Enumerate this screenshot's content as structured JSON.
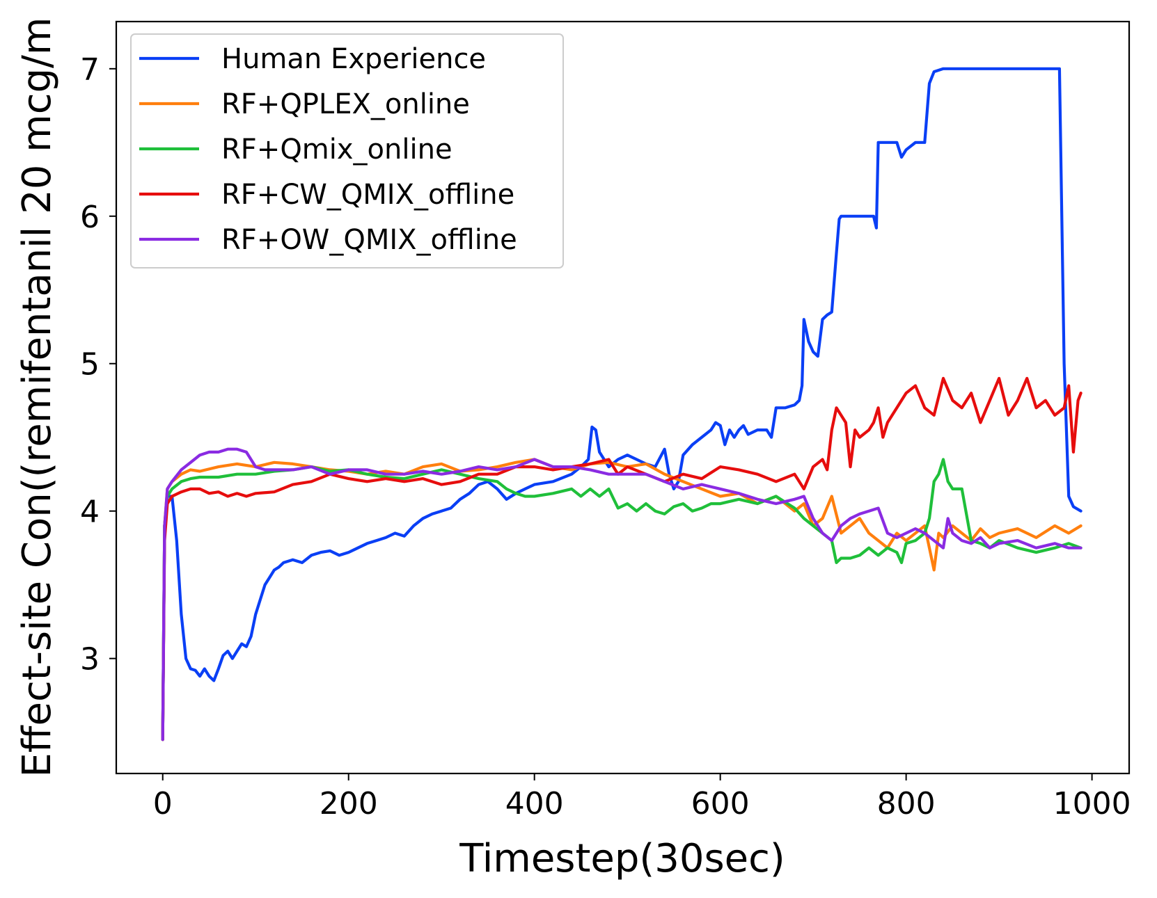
{
  "chart_data": {
    "type": "line",
    "title": "",
    "xlabel": "Timestep(30sec)",
    "ylabel": "Effect-site Con((remifentanil 20 mcg/m",
    "xlim": [
      -50,
      1040
    ],
    "ylim": [
      2.22,
      7.32
    ],
    "xticks": [
      0,
      200,
      400,
      600,
      800,
      1000
    ],
    "xtick_labels": [
      "0",
      "200",
      "400",
      "600",
      "800",
      "1000"
    ],
    "yticks": [
      3,
      4,
      5,
      6,
      7
    ],
    "ytick_labels": [
      "3",
      "4",
      "5",
      "6",
      "7"
    ],
    "grid": false,
    "legend_position": "top-left",
    "series": [
      {
        "name": "Human Experience",
        "color": "#0a3ff5",
        "x": [
          0,
          2,
          5,
          10,
          15,
          20,
          25,
          30,
          35,
          40,
          45,
          50,
          55,
          60,
          65,
          70,
          75,
          80,
          85,
          90,
          95,
          100,
          105,
          110,
          115,
          120,
          125,
          130,
          140,
          150,
          160,
          170,
          180,
          190,
          200,
          210,
          220,
          230,
          240,
          250,
          260,
          270,
          280,
          290,
          300,
          310,
          320,
          330,
          340,
          350,
          360,
          370,
          380,
          390,
          400,
          420,
          440,
          450,
          458,
          462,
          466,
          470,
          480,
          490,
          500,
          510,
          520,
          530,
          540,
          545,
          550,
          555,
          560,
          570,
          580,
          590,
          595,
          600,
          605,
          610,
          615,
          620,
          625,
          630,
          640,
          650,
          655,
          660,
          670,
          680,
          685,
          688,
          690,
          695,
          700,
          705,
          710,
          715,
          720,
          725,
          728,
          730,
          740,
          750,
          760,
          765,
          768,
          770,
          772,
          780,
          790,
          795,
          800,
          810,
          820,
          825,
          830,
          840,
          850,
          860,
          900,
          950,
          965,
          970,
          975,
          980,
          988
        ],
        "y": [
          2.45,
          3.9,
          4.1,
          4.1,
          3.8,
          3.3,
          3.0,
          2.93,
          2.92,
          2.88,
          2.93,
          2.88,
          2.85,
          2.93,
          3.02,
          3.05,
          3.0,
          3.05,
          3.1,
          3.08,
          3.15,
          3.3,
          3.4,
          3.5,
          3.55,
          3.6,
          3.62,
          3.65,
          3.67,
          3.65,
          3.7,
          3.72,
          3.73,
          3.7,
          3.72,
          3.75,
          3.78,
          3.8,
          3.82,
          3.85,
          3.83,
          3.9,
          3.95,
          3.98,
          4.0,
          4.02,
          4.08,
          4.12,
          4.18,
          4.2,
          4.15,
          4.08,
          4.12,
          4.15,
          4.18,
          4.2,
          4.25,
          4.3,
          4.35,
          4.57,
          4.55,
          4.4,
          4.3,
          4.35,
          4.38,
          4.35,
          4.32,
          4.3,
          4.42,
          4.25,
          4.15,
          4.2,
          4.38,
          4.45,
          4.5,
          4.55,
          4.6,
          4.58,
          4.45,
          4.55,
          4.5,
          4.55,
          4.58,
          4.52,
          4.55,
          4.55,
          4.5,
          4.7,
          4.7,
          4.72,
          4.75,
          4.85,
          5.3,
          5.15,
          5.08,
          5.05,
          5.3,
          5.33,
          5.35,
          5.75,
          5.98,
          6.0,
          6.0,
          6.0,
          6.0,
          6.0,
          5.92,
          6.5,
          6.5,
          6.5,
          6.5,
          6.4,
          6.45,
          6.5,
          6.5,
          6.9,
          6.98,
          7.0,
          7.0,
          7.0,
          7.0,
          7.0,
          7.0,
          5.0,
          4.1,
          4.03,
          4.0
        ]
      },
      {
        "name": "RF+QPLEX_online",
        "color": "#ff7f0e",
        "x": [
          0,
          2,
          5,
          10,
          20,
          30,
          40,
          60,
          80,
          100,
          120,
          140,
          160,
          180,
          200,
          220,
          240,
          260,
          280,
          300,
          320,
          340,
          360,
          380,
          400,
          420,
          440,
          460,
          480,
          500,
          520,
          540,
          560,
          580,
          600,
          620,
          640,
          660,
          680,
          690,
          700,
          710,
          720,
          730,
          740,
          750,
          760,
          770,
          780,
          790,
          800,
          810,
          820,
          830,
          835,
          840,
          850,
          860,
          870,
          880,
          890,
          900,
          920,
          940,
          960,
          975,
          988
        ],
        "y": [
          2.45,
          3.9,
          4.15,
          4.2,
          4.25,
          4.28,
          4.27,
          4.3,
          4.32,
          4.3,
          4.33,
          4.32,
          4.3,
          4.28,
          4.27,
          4.25,
          4.27,
          4.25,
          4.3,
          4.32,
          4.27,
          4.28,
          4.3,
          4.33,
          4.35,
          4.3,
          4.28,
          4.32,
          4.33,
          4.3,
          4.32,
          4.25,
          4.2,
          4.15,
          4.1,
          4.12,
          4.05,
          4.1,
          4.0,
          4.05,
          3.9,
          3.95,
          4.1,
          3.85,
          3.9,
          3.95,
          3.85,
          3.8,
          3.75,
          3.85,
          3.8,
          3.85,
          3.9,
          3.6,
          3.85,
          3.82,
          3.9,
          3.85,
          3.8,
          3.88,
          3.82,
          3.85,
          3.88,
          3.82,
          3.9,
          3.85,
          3.9
        ]
      },
      {
        "name": "RF+Qmix_online",
        "color": "#1fbf3a",
        "x": [
          0,
          2,
          5,
          10,
          20,
          30,
          40,
          60,
          80,
          100,
          120,
          140,
          160,
          180,
          200,
          220,
          240,
          260,
          280,
          300,
          320,
          340,
          360,
          370,
          380,
          390,
          400,
          420,
          440,
          450,
          460,
          470,
          480,
          490,
          500,
          510,
          520,
          530,
          540,
          550,
          560,
          570,
          580,
          590,
          600,
          620,
          640,
          660,
          680,
          690,
          700,
          710,
          720,
          725,
          730,
          740,
          750,
          760,
          770,
          780,
          790,
          795,
          800,
          810,
          820,
          825,
          830,
          835,
          840,
          845,
          850,
          860,
          870,
          880,
          890,
          900,
          920,
          940,
          960,
          975,
          988
        ],
        "y": [
          2.45,
          3.9,
          4.1,
          4.15,
          4.2,
          4.22,
          4.23,
          4.23,
          4.25,
          4.25,
          4.27,
          4.28,
          4.3,
          4.27,
          4.28,
          4.25,
          4.23,
          4.22,
          4.25,
          4.28,
          4.25,
          4.22,
          4.2,
          4.15,
          4.12,
          4.1,
          4.1,
          4.12,
          4.15,
          4.1,
          4.15,
          4.1,
          4.15,
          4.02,
          4.05,
          4.0,
          4.05,
          4.0,
          3.98,
          4.03,
          4.05,
          4.0,
          4.02,
          4.05,
          4.05,
          4.08,
          4.05,
          4.1,
          4.02,
          3.95,
          3.9,
          3.85,
          3.8,
          3.65,
          3.68,
          3.68,
          3.7,
          3.75,
          3.7,
          3.75,
          3.72,
          3.65,
          3.78,
          3.8,
          3.85,
          3.95,
          4.2,
          4.25,
          4.35,
          4.2,
          4.15,
          4.15,
          3.8,
          3.78,
          3.75,
          3.8,
          3.75,
          3.72,
          3.75,
          3.78,
          3.75
        ]
      },
      {
        "name": "RF+CW_QMIX_offline",
        "color": "#e60d0d",
        "x": [
          0,
          2,
          5,
          10,
          20,
          30,
          40,
          50,
          60,
          70,
          80,
          90,
          100,
          120,
          140,
          160,
          180,
          200,
          220,
          240,
          260,
          280,
          300,
          320,
          340,
          360,
          380,
          400,
          420,
          440,
          460,
          480,
          490,
          500,
          520,
          540,
          560,
          580,
          600,
          620,
          640,
          660,
          680,
          690,
          700,
          710,
          715,
          720,
          725,
          730,
          735,
          740,
          745,
          750,
          760,
          765,
          770,
          775,
          780,
          785,
          790,
          800,
          810,
          820,
          830,
          840,
          850,
          860,
          870,
          880,
          890,
          900,
          910,
          920,
          930,
          940,
          950,
          960,
          970,
          975,
          980,
          985,
          988
        ],
        "y": [
          2.45,
          3.8,
          4.05,
          4.1,
          4.13,
          4.15,
          4.15,
          4.12,
          4.13,
          4.1,
          4.12,
          4.1,
          4.12,
          4.13,
          4.18,
          4.2,
          4.25,
          4.22,
          4.2,
          4.22,
          4.2,
          4.22,
          4.18,
          4.2,
          4.25,
          4.25,
          4.3,
          4.3,
          4.28,
          4.3,
          4.32,
          4.35,
          4.25,
          4.3,
          4.25,
          4.2,
          4.25,
          4.22,
          4.3,
          4.28,
          4.25,
          4.2,
          4.25,
          4.15,
          4.3,
          4.35,
          4.28,
          4.55,
          4.7,
          4.65,
          4.6,
          4.3,
          4.55,
          4.5,
          4.55,
          4.6,
          4.7,
          4.5,
          4.6,
          4.65,
          4.7,
          4.8,
          4.85,
          4.7,
          4.65,
          4.9,
          4.75,
          4.7,
          4.8,
          4.6,
          4.75,
          4.9,
          4.65,
          4.75,
          4.9,
          4.7,
          4.75,
          4.65,
          4.7,
          4.85,
          4.4,
          4.75,
          4.8
        ]
      },
      {
        "name": "RF+OW_QMIX_offline",
        "color": "#8a2be2",
        "x": [
          0,
          2,
          5,
          10,
          20,
          30,
          40,
          50,
          60,
          70,
          80,
          90,
          100,
          110,
          120,
          140,
          160,
          180,
          200,
          220,
          240,
          260,
          280,
          300,
          320,
          340,
          360,
          380,
          400,
          420,
          440,
          460,
          480,
          500,
          520,
          540,
          560,
          580,
          600,
          620,
          640,
          660,
          680,
          690,
          700,
          710,
          720,
          730,
          740,
          750,
          760,
          770,
          780,
          790,
          800,
          810,
          820,
          830,
          840,
          845,
          850,
          860,
          870,
          880,
          890,
          900,
          920,
          940,
          960,
          975,
          988
        ],
        "y": [
          2.45,
          3.9,
          4.15,
          4.2,
          4.28,
          4.33,
          4.38,
          4.4,
          4.4,
          4.42,
          4.42,
          4.4,
          4.3,
          4.28,
          4.28,
          4.28,
          4.3,
          4.25,
          4.28,
          4.28,
          4.25,
          4.25,
          4.27,
          4.25,
          4.27,
          4.3,
          4.28,
          4.3,
          4.35,
          4.3,
          4.3,
          4.28,
          4.25,
          4.25,
          4.25,
          4.2,
          4.15,
          4.18,
          4.15,
          4.12,
          4.08,
          4.05,
          4.08,
          4.1,
          3.95,
          3.85,
          3.8,
          3.9,
          3.95,
          3.98,
          4.0,
          4.02,
          3.85,
          3.82,
          3.85,
          3.88,
          3.85,
          3.8,
          3.75,
          3.95,
          3.85,
          3.8,
          3.78,
          3.82,
          3.75,
          3.78,
          3.8,
          3.75,
          3.78,
          3.75,
          3.75
        ]
      }
    ]
  }
}
